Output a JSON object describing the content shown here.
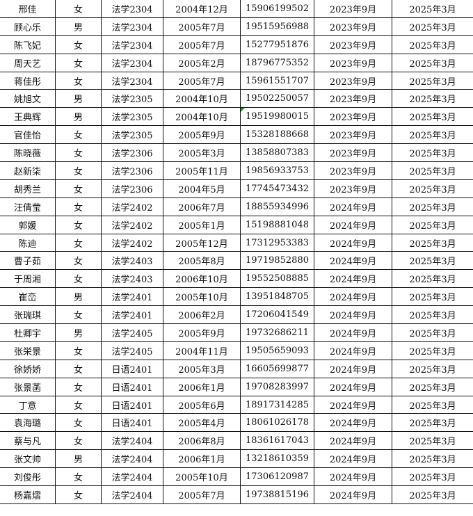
{
  "rows": [
    [
      "邢佳",
      "女",
      "法学2304",
      "2004年12月",
      "15906199502",
      "2023年9月",
      "2025年3月"
    ],
    [
      "顾心乐",
      "男",
      "法学2304",
      "2005年7月",
      "19515956988",
      "2023年9月",
      "2025年3月"
    ],
    [
      "陈飞妃",
      "女",
      "法学2304",
      "2005年7月",
      "15277951876",
      "2023年9月",
      "2025年3月"
    ],
    [
      "周天艺",
      "女",
      "法学2304",
      "2005年2月",
      "18796775352",
      "2023年9月",
      "2025年3月"
    ],
    [
      "蒋佳彤",
      "女",
      "法学2304",
      "2005年7月",
      "15961551707",
      "2023年9月",
      "2025年3月"
    ],
    [
      "姚旭文",
      "男",
      "法学2305",
      "2004年10月",
      "19502250057",
      "2023年9月",
      "2025年3月"
    ],
    [
      "王典辉",
      "男",
      "法学2305",
      "2004年10月",
      "19519980015",
      "2023年9月",
      "2025年3月"
    ],
    [
      "官佳怡",
      "女",
      "法学2305",
      "2005年9月",
      "15328188668",
      "2023年9月",
      "2025年3月"
    ],
    [
      "陈晓薇",
      "女",
      "法学2306",
      "2005年3月",
      "13858807383",
      "2023年9月",
      "2025年3月"
    ],
    [
      "赵新柒",
      "女",
      "法学2306",
      "2005年11月",
      "19856933753",
      "2023年9月",
      "2025年3月"
    ],
    [
      "胡秀兰",
      "女",
      "法学2306",
      "2004年5月",
      "17745473432",
      "2023年9月",
      "2025年3月"
    ],
    [
      "汪倩莹",
      "女",
      "法学2402",
      "2006年7月",
      "18855934996",
      "2024年9月",
      "2025年3月"
    ],
    [
      "郭媛",
      "女",
      "法学2402",
      "2005年1月",
      "15198881048",
      "2024年9月",
      "2025年3月"
    ],
    [
      "陈迪",
      "女",
      "法学2402",
      "2005年12月",
      "17312953383",
      "2024年9月",
      "2025年3月"
    ],
    [
      "曹子茹",
      "女",
      "法学2403",
      "2005年8月",
      "19719852880",
      "2024年9月",
      "2025年3月"
    ],
    [
      "于周湘",
      "女",
      "法学2403",
      "2006年10月",
      "19552508885",
      "2024年9月",
      "2025年3月"
    ],
    [
      "崔峦",
      "男",
      "法学2401",
      "2005年10月",
      "13951848705",
      "2024年9月",
      "2025年3月"
    ],
    [
      "张瑞琪",
      "女",
      "法学2401",
      "2006年2月",
      "17206041549",
      "2024年9月",
      "2025年3月"
    ],
    [
      "杜卿宇",
      "男",
      "法学2405",
      "2005年9月",
      "19732686211",
      "2024年9月",
      "2025年3月"
    ],
    [
      "张栄景",
      "女",
      "法学2405",
      "2004年11月",
      "19505659093",
      "2024年9月",
      "2025年3月"
    ],
    [
      "徐娇娇",
      "女",
      "日语2401",
      "2005年3月",
      "16605699877",
      "2024年9月",
      "2025年3月"
    ],
    [
      "张景菡",
      "女",
      "日语2401",
      "2006年1月",
      "19708283997",
      "2024年9月",
      "2025年3月"
    ],
    [
      "丁意",
      "女",
      "日语2401",
      "2005年6月",
      "18917314285",
      "2024年9月",
      "2025年3月"
    ],
    [
      "袁海璐",
      "女",
      "日语2401",
      "2005年4月",
      "18061026178",
      "2024年9月",
      "2025年3月"
    ],
    [
      "蔡与凡",
      "女",
      "法学2404",
      "2006年8月",
      "18361617043",
      "2024年9月",
      "2025年3月"
    ],
    [
      "张文帅",
      "男",
      "法学2404",
      "2006年1月",
      "13218610359",
      "2024年9月",
      "2025年3月"
    ],
    [
      "刘俊彤",
      "女",
      "法学2404",
      "2005年10月",
      "17306120987",
      "2024年9月",
      "2025年3月"
    ],
    [
      "杨嘉熠",
      "女",
      "法学2404",
      "2005年7月",
      "19738815196",
      "2024年9月",
      "2025年3月"
    ]
  ],
  "colors": {
    "border": "#111111",
    "cell_marker": "#1a9a2a"
  }
}
